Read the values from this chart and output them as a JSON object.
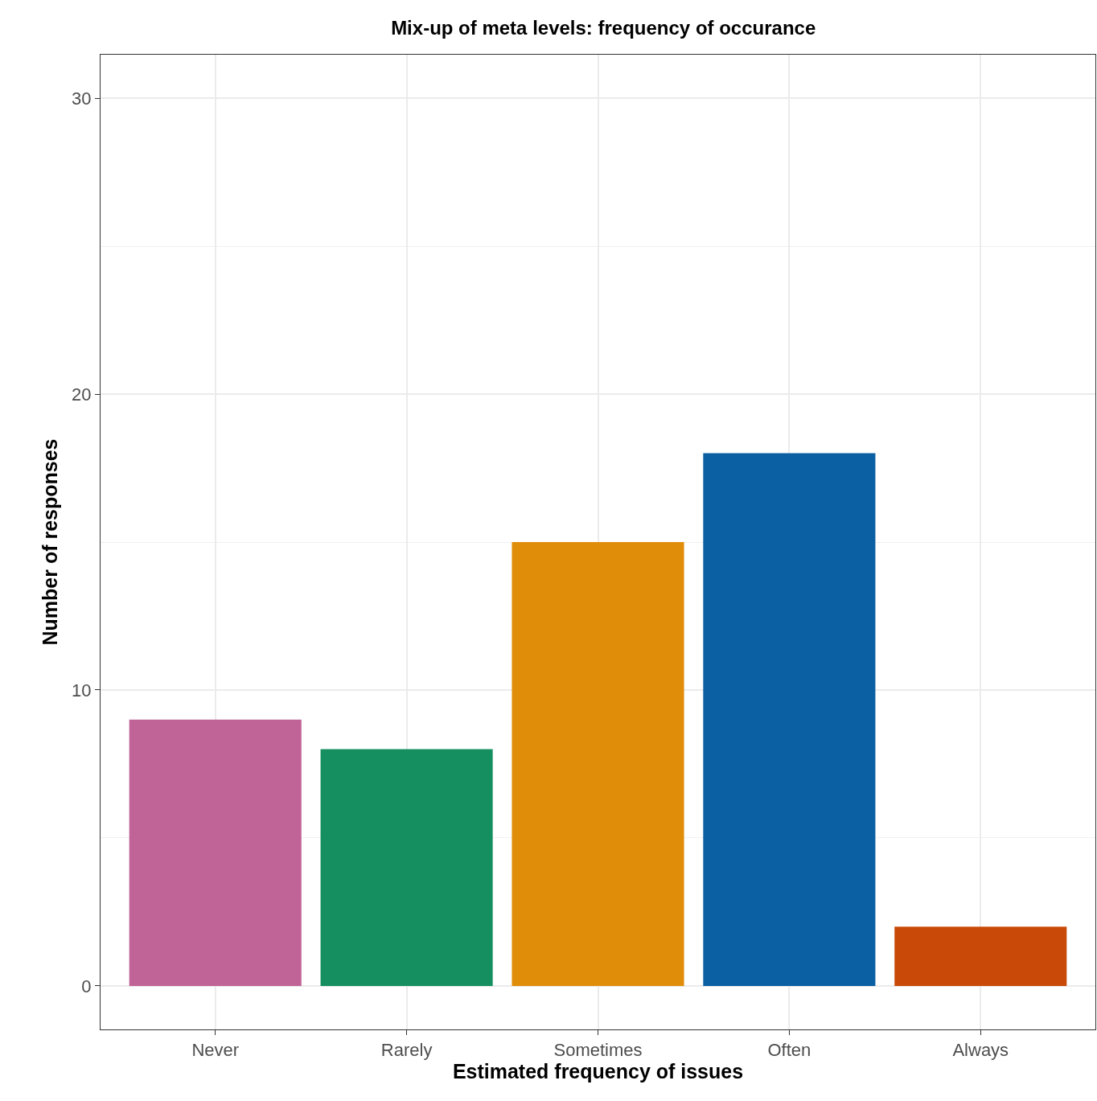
{
  "chart_data": {
    "type": "bar",
    "title": "Mix-up of meta levels: frequency of occurance",
    "xlabel": "Estimated frequency of issues",
    "ylabel": "Number of responses",
    "categories": [
      "Never",
      "Rarely",
      "Sometimes",
      "Often",
      "Always"
    ],
    "values": [
      9,
      8,
      15,
      18,
      2
    ],
    "colors": [
      "#c06396",
      "#168f60",
      "#e08d0a",
      "#0b5fa3",
      "#c94a08"
    ],
    "ylim": [
      -1.47,
      31.47
    ],
    "yticks": [
      0,
      {
        "value": 5,
        "label": null
      },
      10,
      {
        "value": 15,
        "label": null
      },
      20,
      {
        "value": 25,
        "label": null
      },
      30
    ],
    "grid": true
  }
}
